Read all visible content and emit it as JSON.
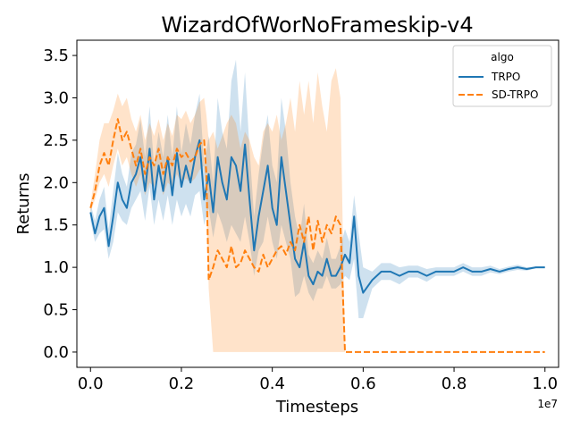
{
  "chart_data": {
    "type": "line",
    "title": "WizardOfWorNoFrameskip-v4",
    "xlabel": "Timesteps",
    "ylabel": "Returns",
    "x_offset_label": "1e7",
    "xlim": [
      -0.03,
      1.03
    ],
    "ylim": [
      -0.18,
      3.68
    ],
    "xticks": [
      0.0,
      0.2,
      0.4,
      0.6,
      0.8,
      1.0
    ],
    "xtick_labels": [
      "0.0",
      "0.2",
      "0.4",
      "0.6",
      "0.8",
      "1.0"
    ],
    "yticks": [
      0.0,
      0.5,
      1.0,
      1.5,
      2.0,
      2.5,
      3.0,
      3.5
    ],
    "ytick_labels": [
      "0.0",
      "0.5",
      "1.0",
      "1.5",
      "2.0",
      "2.5",
      "3.0",
      "3.5"
    ],
    "grid": false,
    "legend": {
      "title": "algo",
      "placement": "top-right"
    },
    "series": [
      {
        "name": "TRPO",
        "color": "#1f77b4",
        "style": "solid",
        "x": [
          0.0,
          0.01,
          0.02,
          0.03,
          0.04,
          0.05,
          0.06,
          0.07,
          0.08,
          0.09,
          0.1,
          0.11,
          0.12,
          0.13,
          0.14,
          0.15,
          0.16,
          0.17,
          0.18,
          0.19,
          0.2,
          0.21,
          0.22,
          0.23,
          0.24,
          0.25,
          0.26,
          0.27,
          0.28,
          0.29,
          0.3,
          0.31,
          0.32,
          0.33,
          0.34,
          0.35,
          0.36,
          0.37,
          0.38,
          0.39,
          0.4,
          0.41,
          0.42,
          0.43,
          0.44,
          0.45,
          0.46,
          0.47,
          0.48,
          0.49,
          0.5,
          0.51,
          0.52,
          0.53,
          0.54,
          0.55,
          0.56,
          0.57,
          0.58,
          0.59,
          0.6,
          0.62,
          0.64,
          0.66,
          0.68,
          0.7,
          0.72,
          0.74,
          0.76,
          0.78,
          0.8,
          0.82,
          0.84,
          0.86,
          0.88,
          0.9,
          0.92,
          0.94,
          0.96,
          0.98,
          1.0
        ],
        "y": [
          1.65,
          1.4,
          1.6,
          1.7,
          1.25,
          1.6,
          2.0,
          1.8,
          1.7,
          2.0,
          2.1,
          2.3,
          1.9,
          2.4,
          1.8,
          2.2,
          1.9,
          2.3,
          1.85,
          2.35,
          1.95,
          2.2,
          2.0,
          2.3,
          2.5,
          1.8,
          2.1,
          1.65,
          2.3,
          2.0,
          1.8,
          2.3,
          2.2,
          1.9,
          2.45,
          1.8,
          1.2,
          1.6,
          1.9,
          2.2,
          1.7,
          1.5,
          2.3,
          1.9,
          1.5,
          1.1,
          1.0,
          1.3,
          0.9,
          0.8,
          0.95,
          0.9,
          1.1,
          0.9,
          0.9,
          1.0,
          1.15,
          1.05,
          1.6,
          0.9,
          0.7,
          0.85,
          0.95,
          0.95,
          0.9,
          0.95,
          0.95,
          0.9,
          0.95,
          0.95,
          0.95,
          1.0,
          0.95,
          0.95,
          0.98,
          0.95,
          0.98,
          1.0,
          0.98,
          1.0,
          1.0
        ],
        "lower": [
          1.55,
          1.3,
          1.4,
          1.45,
          1.1,
          1.3,
          1.65,
          1.55,
          1.5,
          1.7,
          1.8,
          1.9,
          1.55,
          1.95,
          1.5,
          1.8,
          1.55,
          1.85,
          1.5,
          1.8,
          1.6,
          1.75,
          1.6,
          1.85,
          1.9,
          1.5,
          1.7,
          1.35,
          1.65,
          1.5,
          1.3,
          1.5,
          1.4,
          1.3,
          1.6,
          1.3,
          0.9,
          1.2,
          1.3,
          1.6,
          1.3,
          1.1,
          1.5,
          1.3,
          1.1,
          0.65,
          0.7,
          0.9,
          0.7,
          0.6,
          0.75,
          0.75,
          0.9,
          0.75,
          0.75,
          0.8,
          0.9,
          0.85,
          1.1,
          0.4,
          0.4,
          0.75,
          0.85,
          0.85,
          0.8,
          0.88,
          0.88,
          0.83,
          0.9,
          0.9,
          0.9,
          0.95,
          0.9,
          0.9,
          0.94,
          0.92,
          0.95,
          0.97,
          0.96,
          0.99,
          0.99
        ],
        "upper": [
          1.75,
          1.55,
          1.8,
          1.95,
          1.45,
          1.9,
          2.35,
          2.1,
          1.95,
          2.35,
          2.45,
          2.75,
          2.3,
          2.9,
          2.2,
          2.6,
          2.3,
          2.8,
          2.3,
          2.9,
          2.35,
          2.7,
          2.45,
          2.8,
          3.05,
          2.2,
          2.55,
          2.0,
          3.0,
          2.6,
          2.4,
          3.2,
          3.45,
          2.6,
          3.3,
          2.4,
          1.6,
          2.1,
          2.5,
          2.8,
          2.2,
          2.0,
          3.0,
          2.6,
          2.0,
          1.6,
          1.35,
          1.75,
          1.15,
          1.05,
          1.2,
          1.1,
          1.35,
          1.1,
          1.1,
          1.25,
          1.45,
          1.3,
          1.85,
          1.4,
          1.0,
          0.95,
          1.05,
          1.05,
          1.0,
          1.02,
          1.02,
          0.98,
          1.0,
          1.0,
          1.0,
          1.05,
          1.0,
          1.0,
          1.02,
          0.98,
          1.01,
          1.03,
          1.0,
          1.01,
          1.01
        ]
      },
      {
        "name": "SD-TRPO",
        "color": "#ff7f0e",
        "style": "dashed",
        "x": [
          0.0,
          0.01,
          0.02,
          0.03,
          0.04,
          0.05,
          0.06,
          0.07,
          0.08,
          0.09,
          0.1,
          0.11,
          0.12,
          0.13,
          0.14,
          0.15,
          0.16,
          0.17,
          0.18,
          0.19,
          0.2,
          0.21,
          0.22,
          0.23,
          0.24,
          0.25,
          0.255,
          0.26,
          0.27,
          0.28,
          0.29,
          0.3,
          0.31,
          0.32,
          0.33,
          0.34,
          0.35,
          0.36,
          0.37,
          0.38,
          0.39,
          0.4,
          0.41,
          0.42,
          0.43,
          0.44,
          0.45,
          0.46,
          0.47,
          0.48,
          0.49,
          0.5,
          0.51,
          0.52,
          0.53,
          0.54,
          0.55,
          0.56,
          0.58,
          0.6,
          0.65,
          0.7,
          0.75,
          0.8,
          0.85,
          0.9,
          0.95,
          1.0
        ],
        "y": [
          1.7,
          1.9,
          2.2,
          2.35,
          2.2,
          2.5,
          2.75,
          2.5,
          2.6,
          2.4,
          2.2,
          2.4,
          2.1,
          2.3,
          2.2,
          2.4,
          2.1,
          2.3,
          2.2,
          2.4,
          2.3,
          2.35,
          2.25,
          2.3,
          2.45,
          2.5,
          2.1,
          0.85,
          1.0,
          1.2,
          1.1,
          1.0,
          1.25,
          1.0,
          1.05,
          1.2,
          1.1,
          1.0,
          0.95,
          1.15,
          1.0,
          1.1,
          1.2,
          1.25,
          1.15,
          1.3,
          1.2,
          1.5,
          1.3,
          1.6,
          1.2,
          1.55,
          1.3,
          1.5,
          1.4,
          1.6,
          1.5,
          0.0,
          0.0,
          0.0,
          0.0,
          0.0,
          0.0,
          0.0,
          0.0,
          0.0,
          0.0,
          0.0
        ],
        "lower": [
          1.65,
          1.8,
          2.0,
          2.1,
          1.95,
          2.2,
          2.4,
          2.2,
          2.3,
          2.1,
          1.95,
          2.1,
          1.85,
          2.0,
          1.95,
          2.1,
          1.85,
          2.0,
          1.95,
          2.1,
          2.0,
          2.05,
          2.0,
          2.05,
          2.15,
          2.2,
          1.8,
          0.75,
          0.0,
          0.0,
          0.0,
          0.0,
          0.0,
          0.0,
          0.0,
          0.0,
          0.0,
          0.0,
          0.0,
          0.0,
          0.0,
          0.0,
          0.0,
          0.0,
          0.0,
          0.0,
          0.0,
          0.0,
          0.0,
          0.0,
          0.0,
          0.0,
          0.0,
          0.0,
          0.0,
          0.0,
          0.0,
          0.0,
          0.0,
          0.0,
          0.0,
          0.0,
          0.0,
          0.0,
          0.0,
          0.0,
          0.0,
          0.0
        ],
        "upper": [
          1.75,
          2.1,
          2.5,
          2.7,
          2.7,
          2.85,
          3.05,
          2.9,
          3.0,
          2.75,
          2.6,
          2.8,
          2.5,
          2.7,
          2.55,
          2.75,
          2.5,
          2.7,
          2.55,
          2.8,
          2.75,
          2.85,
          2.7,
          2.8,
          2.95,
          3.0,
          2.8,
          2.5,
          2.6,
          2.4,
          2.55,
          2.7,
          2.8,
          2.7,
          2.4,
          2.6,
          2.5,
          2.3,
          2.2,
          2.6,
          2.7,
          2.6,
          2.8,
          2.5,
          2.7,
          3.0,
          2.6,
          3.2,
          2.8,
          3.2,
          2.7,
          3.3,
          2.9,
          2.6,
          3.2,
          3.35,
          3.0,
          0.0,
          0.0,
          0.0,
          0.0,
          0.0,
          0.0,
          0.0,
          0.0,
          0.0,
          0.0,
          0.0
        ]
      }
    ]
  }
}
